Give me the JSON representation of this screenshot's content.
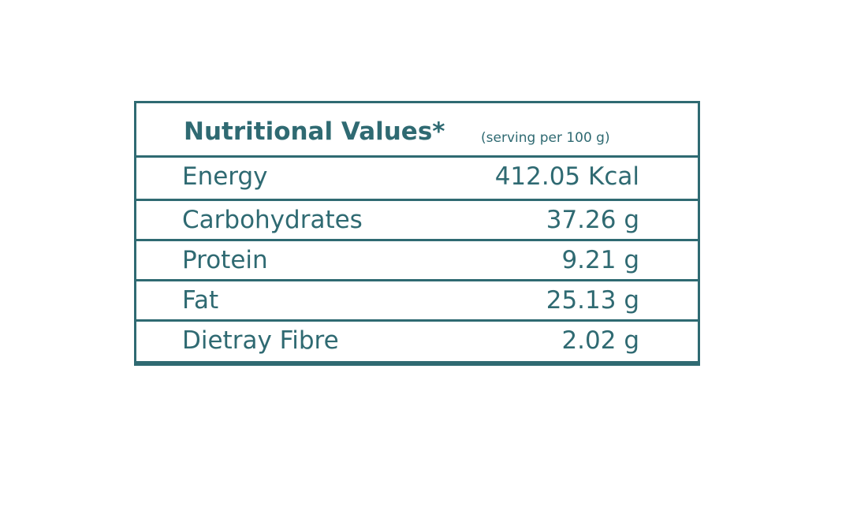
{
  "header": {
    "title": "Nutritional Values*",
    "subtitle": "(serving per 100 g)"
  },
  "table": {
    "rows": [
      [
        "Energy",
        "412.05 Kcal"
      ],
      [
        "Carbohydrates",
        "37.26 g"
      ],
      [
        "Protein",
        "9.21 g"
      ],
      [
        "Fat",
        "25.13 g"
      ],
      [
        "Dietray Fibre",
        "2.02 g"
      ]
    ]
  }
}
